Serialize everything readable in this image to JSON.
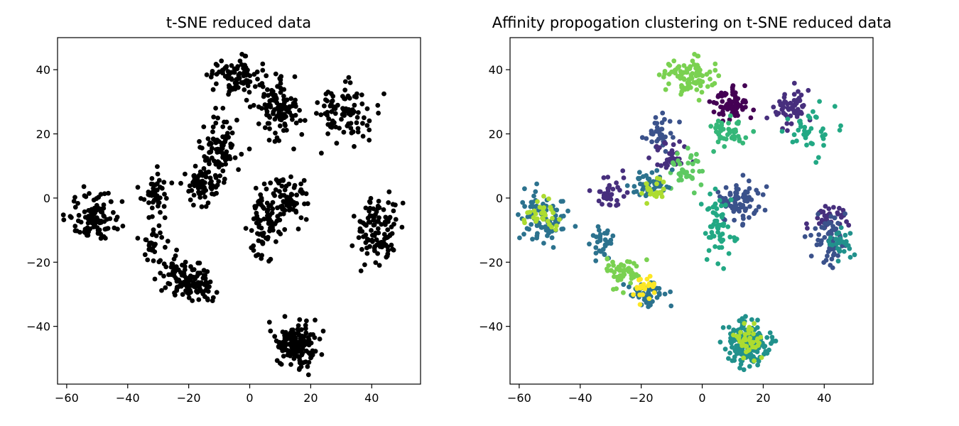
{
  "chart_data": [
    {
      "type": "scatter",
      "title": "t-SNE reduced data",
      "xlabel": "",
      "ylabel": "",
      "xlim": [
        -63,
        56
      ],
      "ylim": [
        -58,
        50
      ],
      "xticks": [
        -60,
        -40,
        -20,
        0,
        20,
        40
      ],
      "yticks": [
        40,
        20,
        0,
        -20,
        -40
      ],
      "xtick_labels": [
        "−60",
        "−40",
        "−20",
        "0",
        "20",
        "40"
      ],
      "ytick_labels": [
        "40",
        "20",
        "0",
        "−20",
        "−40"
      ],
      "grid": false,
      "point_color": "#000000",
      "clusters": [
        {
          "cx": -5,
          "cy": 38,
          "sx": 4,
          "sy": 3,
          "n": 90
        },
        {
          "cx": 9,
          "cy": 27,
          "sx": 3.5,
          "sy": 4.5,
          "n": 110
        },
        {
          "cx": 31,
          "cy": 27,
          "sx": 5,
          "sy": 5,
          "n": 90
        },
        {
          "cx": -10,
          "cy": 15,
          "sx": 3,
          "sy": 5,
          "n": 90
        },
        {
          "cx": -16,
          "cy": 4,
          "sx": 3,
          "sy": 3,
          "n": 70
        },
        {
          "cx": -31,
          "cy": 2,
          "sx": 2.5,
          "sy": 3,
          "n": 45
        },
        {
          "cx": -51,
          "cy": -6,
          "sx": 4,
          "sy": 4,
          "n": 100
        },
        {
          "cx": 12,
          "cy": -1,
          "sx": 3.5,
          "sy": 3.5,
          "n": 80
        },
        {
          "cx": 5,
          "cy": -9,
          "sx": 2.5,
          "sy": 6,
          "n": 70
        },
        {
          "cx": 42,
          "cy": -11,
          "sx": 3.5,
          "sy": 5,
          "n": 110
        },
        {
          "cx": -32,
          "cy": -13,
          "sx": 2,
          "sy": 4,
          "n": 35
        },
        {
          "cx": -22,
          "cy": -24,
          "sx": 3.5,
          "sy": 3,
          "n": 75
        },
        {
          "cx": -17,
          "cy": -28,
          "sx": 3,
          "sy": 2.5,
          "n": 55
        },
        {
          "cx": 15,
          "cy": -46,
          "sx": 3.5,
          "sy": 3.5,
          "n": 150
        }
      ]
    },
    {
      "type": "scatter",
      "title": "Affinity propogation clustering on t-SNE reduced data",
      "xlabel": "",
      "ylabel": "",
      "xlim": [
        -63,
        56
      ],
      "ylim": [
        -58,
        50
      ],
      "xticks": [
        -60,
        -40,
        -20,
        0,
        20,
        40
      ],
      "yticks": [
        40,
        20,
        0,
        -20,
        -40
      ],
      "xtick_labels": [
        "−60",
        "−40",
        "−20",
        "0",
        "20",
        "40"
      ],
      "ytick_labels": [
        "40",
        "20",
        "0",
        "−20",
        "−40"
      ],
      "grid": false,
      "colormap": "viridis",
      "palette": [
        "#440154",
        "#472f7d",
        "#3b528b",
        "#2c728e",
        "#21918c",
        "#28ae80",
        "#5ec962",
        "#addc30",
        "#fde725"
      ],
      "clusters": [
        {
          "cx": -5,
          "cy": 38,
          "sx": 4,
          "sy": 3,
          "n": 90,
          "color": "#7ad151"
        },
        {
          "cx": 9,
          "cy": 29,
          "sx": 3,
          "sy": 2.5,
          "n": 70,
          "color": "#440154"
        },
        {
          "cx": 9,
          "cy": 21,
          "sx": 3.5,
          "sy": 2.5,
          "n": 45,
          "color": "#35b779"
        },
        {
          "cx": 29,
          "cy": 28,
          "sx": 3,
          "sy": 3,
          "n": 60,
          "color": "#472f7d"
        },
        {
          "cx": 35,
          "cy": 20,
          "sx": 4,
          "sy": 4,
          "n": 40,
          "color": "#22a884"
        },
        {
          "cx": -14,
          "cy": 21,
          "sx": 3,
          "sy": 3,
          "n": 35,
          "color": "#3b528b"
        },
        {
          "cx": -10,
          "cy": 13,
          "sx": 3,
          "sy": 2.5,
          "n": 35,
          "color": "#472f7d"
        },
        {
          "cx": -6,
          "cy": 9,
          "sx": 3,
          "sy": 3,
          "n": 35,
          "color": "#5ec962"
        },
        {
          "cx": -17,
          "cy": 4,
          "sx": 3,
          "sy": 2,
          "n": 45,
          "color": "#2c728e"
        },
        {
          "cx": -15,
          "cy": 3,
          "sx": 2,
          "sy": 2,
          "n": 25,
          "color": "#addc30"
        },
        {
          "cx": -31,
          "cy": 2,
          "sx": 2.5,
          "sy": 2.5,
          "n": 40,
          "color": "#472f7d"
        },
        {
          "cx": -52,
          "cy": -6,
          "sx": 4,
          "sy": 4,
          "n": 90,
          "color": "#2c728e"
        },
        {
          "cx": -52,
          "cy": -5,
          "sx": 2.5,
          "sy": 3,
          "n": 30,
          "color": "#addc30"
        },
        {
          "cx": 12,
          "cy": -1,
          "sx": 3.5,
          "sy": 3.5,
          "n": 80,
          "color": "#3b528b"
        },
        {
          "cx": 5,
          "cy": -9,
          "sx": 2.5,
          "sy": 5,
          "n": 60,
          "color": "#22a884"
        },
        {
          "cx": 42,
          "cy": -6,
          "sx": 3,
          "sy": 2,
          "n": 40,
          "color": "#472f7d"
        },
        {
          "cx": 41,
          "cy": -13,
          "sx": 3,
          "sy": 4,
          "n": 60,
          "color": "#3b528b"
        },
        {
          "cx": 45,
          "cy": -14,
          "sx": 2,
          "sy": 3,
          "n": 30,
          "color": "#21918c"
        },
        {
          "cx": -33,
          "cy": -14,
          "sx": 2,
          "sy": 3,
          "n": 30,
          "color": "#2c728e"
        },
        {
          "cx": -25,
          "cy": -23,
          "sx": 3,
          "sy": 2.5,
          "n": 50,
          "color": "#7ad151"
        },
        {
          "cx": -18,
          "cy": -29,
          "sx": 3,
          "sy": 2,
          "n": 50,
          "color": "#2c728e"
        },
        {
          "cx": -18,
          "cy": -28,
          "sx": 2,
          "sy": 2,
          "n": 25,
          "color": "#fde725"
        },
        {
          "cx": 15,
          "cy": -46,
          "sx": 3.5,
          "sy": 3.5,
          "n": 150,
          "color": "#21918c"
        },
        {
          "cx": 15,
          "cy": -45,
          "sx": 2.5,
          "sy": 3,
          "n": 40,
          "color": "#addc30"
        }
      ]
    }
  ]
}
